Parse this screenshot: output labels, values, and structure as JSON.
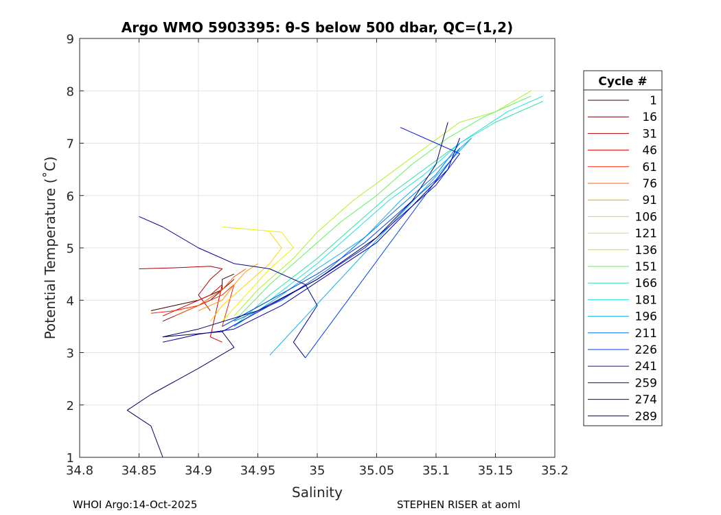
{
  "chart_data": {
    "type": "line",
    "title": "Argo WMO 5903395: θ-S below 500 dbar,  QC=(1,2)",
    "xlabel": "Salinity",
    "ylabel": "Potential Temperature (˚C)",
    "xlim": [
      34.8,
      35.2
    ],
    "ylim": [
      1,
      9
    ],
    "x_ticks": [
      34.8,
      34.85,
      34.9,
      34.95,
      35,
      35.05,
      35.1,
      35.15,
      35.2
    ],
    "x_tick_labels": [
      "34.8",
      "34.85",
      "34.9",
      "34.95",
      "35",
      "35.05",
      "35.1",
      "35.15",
      "35.2"
    ],
    "y_ticks": [
      1,
      2,
      3,
      4,
      5,
      6,
      7,
      8,
      9
    ],
    "y_tick_labels": [
      "1",
      "2",
      "3",
      "4",
      "5",
      "6",
      "7",
      "8",
      "9"
    ],
    "grid": true,
    "legend": {
      "title": "Cycle #",
      "placement": "outside-right",
      "entries": [
        {
          "label": "1",
          "color": "#3a0000"
        },
        {
          "label": "16",
          "color": "#7a0000"
        },
        {
          "label": "31",
          "color": "#b00000"
        },
        {
          "label": "46",
          "color": "#d80000"
        },
        {
          "label": "61",
          "color": "#ff2000"
        },
        {
          "label": "76",
          "color": "#ff6000"
        },
        {
          "label": "91",
          "color": "#ff9a00"
        },
        {
          "label": "106",
          "color": "#ffd000"
        },
        {
          "label": "121",
          "color": "#e6f000"
        },
        {
          "label": "136",
          "color": "#b0f020"
        },
        {
          "label": "151",
          "color": "#60f060"
        },
        {
          "label": "166",
          "color": "#30e0a0"
        },
        {
          "label": "181",
          "color": "#20e0e0"
        },
        {
          "label": "196",
          "color": "#10b0f0"
        },
        {
          "label": "211",
          "color": "#0070f0"
        },
        {
          "label": "226",
          "color": "#0040f0"
        },
        {
          "label": "241",
          "color": "#0010e0"
        },
        {
          "label": "259",
          "color": "#0000b0"
        },
        {
          "label": "274",
          "color": "#000090"
        },
        {
          "label": "289",
          "color": "#000060"
        }
      ]
    },
    "series": [
      {
        "name": "1",
        "color": "#3a0000",
        "points": [
          [
            34.86,
            3.8
          ],
          [
            34.88,
            3.9
          ],
          [
            34.9,
            4.0
          ],
          [
            34.92,
            4.2
          ],
          [
            34.92,
            4.4
          ],
          [
            34.93,
            4.5
          ]
        ]
      },
      {
        "name": "16",
        "color": "#7a0000",
        "points": [
          [
            34.87,
            3.6
          ],
          [
            34.89,
            3.8
          ],
          [
            34.91,
            4.0
          ],
          [
            34.92,
            4.2
          ],
          [
            34.93,
            4.4
          ]
        ]
      },
      {
        "name": "31",
        "color": "#b00000",
        "points": [
          [
            34.85,
            4.6
          ],
          [
            34.88,
            4.62
          ],
          [
            34.91,
            4.65
          ],
          [
            34.92,
            4.6
          ],
          [
            34.91,
            4.4
          ],
          [
            34.9,
            4.1
          ],
          [
            34.91,
            3.8
          ]
        ]
      },
      {
        "name": "46",
        "color": "#d80000",
        "points": [
          [
            34.87,
            3.7
          ],
          [
            34.89,
            3.9
          ],
          [
            34.91,
            4.1
          ],
          [
            34.92,
            4.3
          ],
          [
            34.91,
            3.3
          ],
          [
            34.92,
            3.2
          ]
        ]
      },
      {
        "name": "61",
        "color": "#ff2000",
        "points": [
          [
            34.86,
            3.75
          ],
          [
            34.88,
            3.8
          ],
          [
            34.9,
            3.9
          ],
          [
            34.92,
            4.1
          ],
          [
            34.93,
            4.3
          ],
          [
            34.92,
            3.5
          ]
        ]
      },
      {
        "name": "76",
        "color": "#ff6000",
        "points": [
          [
            34.88,
            3.7
          ],
          [
            34.9,
            3.9
          ],
          [
            34.92,
            4.2
          ],
          [
            34.93,
            4.45
          ],
          [
            34.94,
            4.6
          ]
        ]
      },
      {
        "name": "91",
        "color": "#ff9a00",
        "points": [
          [
            34.9,
            3.8
          ],
          [
            34.92,
            4.0
          ],
          [
            34.93,
            4.3
          ],
          [
            34.94,
            4.55
          ],
          [
            34.95,
            4.7
          ]
        ]
      },
      {
        "name": "106",
        "color": "#ffd000",
        "points": [
          [
            34.91,
            3.6
          ],
          [
            34.92,
            3.9
          ],
          [
            34.94,
            4.3
          ],
          [
            34.96,
            4.7
          ],
          [
            34.97,
            5.0
          ],
          [
            34.96,
            5.3
          ]
        ]
      },
      {
        "name": "121",
        "color": "#e6f000",
        "points": [
          [
            34.92,
            3.6
          ],
          [
            34.94,
            4.1
          ],
          [
            34.96,
            4.6
          ],
          [
            34.98,
            5.0
          ],
          [
            34.97,
            5.3
          ],
          [
            34.92,
            5.4
          ]
        ]
      },
      {
        "name": "136",
        "color": "#b0f020",
        "points": [
          [
            34.93,
            3.7
          ],
          [
            34.95,
            4.2
          ],
          [
            34.98,
            4.8
          ],
          [
            35.0,
            5.3
          ],
          [
            35.03,
            5.9
          ],
          [
            35.06,
            6.4
          ],
          [
            35.09,
            6.9
          ],
          [
            35.12,
            7.4
          ],
          [
            35.15,
            7.6
          ],
          [
            35.18,
            8.0
          ]
        ]
      },
      {
        "name": "151",
        "color": "#60f060",
        "points": [
          [
            34.93,
            3.6
          ],
          [
            34.96,
            4.3
          ],
          [
            34.99,
            4.9
          ],
          [
            35.02,
            5.5
          ],
          [
            35.05,
            6.0
          ],
          [
            35.08,
            6.6
          ],
          [
            35.11,
            7.1
          ],
          [
            35.14,
            7.5
          ],
          [
            35.18,
            7.9
          ]
        ]
      },
      {
        "name": "166",
        "color": "#30e0a0",
        "points": [
          [
            34.93,
            3.5
          ],
          [
            34.96,
            4.1
          ],
          [
            35.0,
            4.8
          ],
          [
            35.03,
            5.4
          ],
          [
            35.06,
            6.0
          ],
          [
            35.09,
            6.5
          ],
          [
            35.12,
            7.0
          ],
          [
            35.15,
            7.4
          ],
          [
            35.19,
            7.8
          ]
        ]
      },
      {
        "name": "181",
        "color": "#20e0e0",
        "points": [
          [
            34.92,
            3.5
          ],
          [
            34.96,
            4.0
          ],
          [
            35.0,
            4.7
          ],
          [
            35.03,
            5.3
          ],
          [
            35.06,
            5.9
          ],
          [
            35.09,
            6.4
          ],
          [
            35.12,
            7.0
          ],
          [
            35.16,
            7.6
          ],
          [
            35.19,
            7.9
          ]
        ]
      },
      {
        "name": "196",
        "color": "#10b0f0",
        "points": [
          [
            34.93,
            3.5
          ],
          [
            34.97,
            4.1
          ],
          [
            35.0,
            4.6
          ],
          [
            35.04,
            5.2
          ],
          [
            35.07,
            5.9
          ],
          [
            35.1,
            6.5
          ],
          [
            35.13,
            7.1
          ],
          [
            34.96,
            2.95
          ]
        ]
      },
      {
        "name": "211",
        "color": "#0070f0",
        "points": [
          [
            34.93,
            3.6
          ],
          [
            34.97,
            4.0
          ],
          [
            35.01,
            4.6
          ],
          [
            35.04,
            5.2
          ],
          [
            35.07,
            5.8
          ],
          [
            35.1,
            6.4
          ],
          [
            35.12,
            7.0
          ]
        ]
      },
      {
        "name": "226",
        "color": "#0040f0",
        "points": [
          [
            34.92,
            3.5
          ],
          [
            34.96,
            4.0
          ],
          [
            35.0,
            4.5
          ],
          [
            35.04,
            5.1
          ],
          [
            35.07,
            5.7
          ],
          [
            35.1,
            6.3
          ],
          [
            35.12,
            6.9
          ],
          [
            34.99,
            2.9
          ]
        ]
      },
      {
        "name": "241",
        "color": "#0010e0",
        "points": [
          [
            34.92,
            3.4
          ],
          [
            34.96,
            3.9
          ],
          [
            35.0,
            4.4
          ],
          [
            35.04,
            5.0
          ],
          [
            35.07,
            5.6
          ],
          [
            35.1,
            6.2
          ],
          [
            35.12,
            6.8
          ],
          [
            35.07,
            7.3
          ]
        ]
      },
      {
        "name": "259",
        "color": "#0000b0",
        "points": [
          [
            34.87,
            3.2
          ],
          [
            34.9,
            3.35
          ],
          [
            34.93,
            3.45
          ],
          [
            34.97,
            3.9
          ],
          [
            35.01,
            4.5
          ],
          [
            35.05,
            5.1
          ],
          [
            35.08,
            5.8
          ],
          [
            35.11,
            6.5
          ],
          [
            35.12,
            7.1
          ]
        ]
      },
      {
        "name": "274",
        "color": "#000090",
        "points": [
          [
            34.85,
            5.6
          ],
          [
            34.87,
            5.4
          ],
          [
            34.9,
            5.0
          ],
          [
            34.93,
            4.7
          ],
          [
            34.96,
            4.6
          ],
          [
            34.99,
            4.3
          ],
          [
            35.0,
            3.9
          ],
          [
            34.98,
            3.2
          ],
          [
            34.99,
            2.9
          ]
        ]
      },
      {
        "name": "289",
        "color": "#000060",
        "points": [
          [
            34.87,
            1.0
          ],
          [
            34.86,
            1.6
          ],
          [
            34.84,
            1.9
          ],
          [
            34.86,
            2.2
          ],
          [
            34.9,
            2.7
          ],
          [
            34.93,
            3.1
          ],
          [
            34.92,
            3.4
          ],
          [
            34.87,
            3.3
          ],
          [
            34.9,
            3.45
          ],
          [
            34.95,
            3.8
          ],
          [
            35.0,
            4.4
          ],
          [
            35.05,
            5.2
          ],
          [
            35.08,
            5.9
          ],
          [
            35.1,
            6.6
          ],
          [
            35.11,
            7.4
          ]
        ]
      }
    ]
  },
  "footer": {
    "left": "WHOI Argo:14-Oct-2025",
    "right": "STEPHEN RISER at aoml"
  }
}
